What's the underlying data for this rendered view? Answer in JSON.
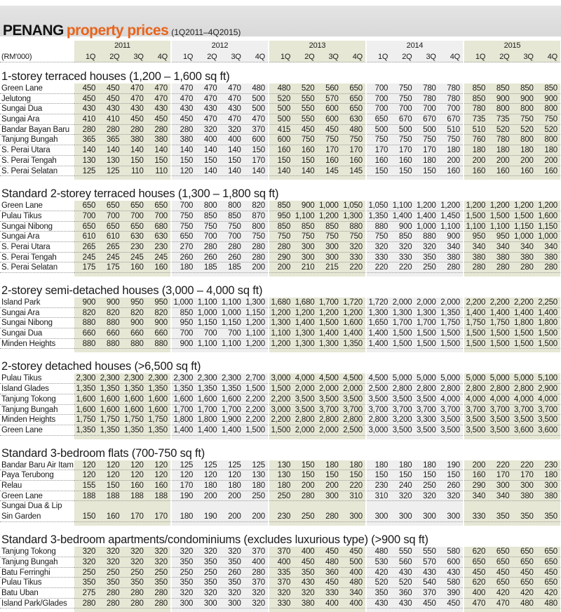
{
  "title": {
    "main": "PENANG",
    "accent": "property prices",
    "period": "(1Q2011–4Q2015)"
  },
  "header": {
    "unit": "(RM'000)",
    "years": [
      "2011",
      "2012",
      "2013",
      "2014",
      "2015"
    ],
    "quarters": [
      "1Q",
      "2Q",
      "3Q",
      "4Q"
    ]
  },
  "colors": {
    "accent": "#e8641c",
    "band_green": "#e6e7d4",
    "band_gray": "#efefef",
    "titlebar": "#dcdcdc"
  },
  "sections": [
    {
      "title": "1-storey terraced houses (1,200 – 1,600  sq ft)",
      "rows": [
        {
          "name": "Green Lane",
          "values": [
            "450",
            "450",
            "470",
            "470",
            "470",
            "470",
            "470",
            "480",
            "480",
            "520",
            "560",
            "650",
            "700",
            "750",
            "780",
            "780",
            "850",
            "850",
            "850",
            "850"
          ]
        },
        {
          "name": "Jelutong",
          "values": [
            "450",
            "450",
            "470",
            "470",
            "470",
            "470",
            "470",
            "500",
            "520",
            "550",
            "570",
            "650",
            "700",
            "750",
            "780",
            "780",
            "850",
            "900",
            "900",
            "900"
          ]
        },
        {
          "name": "Sungai Dua",
          "values": [
            "430",
            "430",
            "430",
            "430",
            "430",
            "430",
            "430",
            "500",
            "500",
            "550",
            "600",
            "650",
            "700",
            "700",
            "700",
            "700",
            "780",
            "800",
            "800",
            "800"
          ]
        },
        {
          "name": "Sungai Ara",
          "values": [
            "410",
            "410",
            "450",
            "450",
            "450",
            "470",
            "470",
            "470",
            "500",
            "550",
            "600",
            "630",
            "650",
            "670",
            "670",
            "670",
            "735",
            "735",
            "750",
            "750"
          ]
        },
        {
          "name": "Bandar Bayan Baru",
          "values": [
            "280",
            "280",
            "280",
            "280",
            "280",
            "320",
            "320",
            "370",
            "415",
            "450",
            "450",
            "480",
            "500",
            "500",
            "500",
            "510",
            "510",
            "520",
            "520",
            "520"
          ]
        },
        {
          "name": "Tanjung Bungah",
          "values": [
            "365",
            "365",
            "380",
            "380",
            "380",
            "400",
            "400",
            "600",
            "600",
            "750",
            "750",
            "750",
            "750",
            "750",
            "750",
            "750",
            "760",
            "780",
            "800",
            "800"
          ]
        },
        {
          "name": "S. Perai Utara",
          "values": [
            "140",
            "140",
            "140",
            "140",
            "140",
            "140",
            "140",
            "150",
            "160",
            "160",
            "170",
            "170",
            "170",
            "170",
            "170",
            "180",
            "180",
            "180",
            "180",
            "180"
          ]
        },
        {
          "name": "S. Perai Tengah",
          "values": [
            "130",
            "130",
            "150",
            "150",
            "150",
            "150",
            "150",
            "170",
            "150",
            "150",
            "160",
            "160",
            "160",
            "160",
            "180",
            "200",
            "200",
            "200",
            "200",
            "200"
          ]
        },
        {
          "name": "S. Perai Selatan",
          "values": [
            "125",
            "125",
            "110",
            "110",
            "120",
            "140",
            "140",
            "140",
            "140",
            "140",
            "145",
            "145",
            "150",
            "150",
            "150",
            "160",
            "160",
            "160",
            "160",
            "160"
          ]
        }
      ]
    },
    {
      "title": "Standard 2-storey terraced houses (1,300 – 1,800  sq ft)",
      "rows": [
        {
          "name": "Green Lane",
          "values": [
            "650",
            "650",
            "650",
            "650",
            "700",
            "800",
            "800",
            "820",
            "850",
            "900",
            "1,000",
            "1,050",
            "1,050",
            "1,100",
            "1,200",
            "1,200",
            "1,200",
            "1,200",
            "1,200",
            "1,200"
          ]
        },
        {
          "name": "Pulau Tikus",
          "values": [
            "700",
            "700",
            "700",
            "700",
            "750",
            "850",
            "850",
            "870",
            "950",
            "1,100",
            "1,200",
            "1,300",
            "1,350",
            "1,400",
            "1,400",
            "1,450",
            "1,500",
            "1,500",
            "1,500",
            "1,600"
          ]
        },
        {
          "name": "Sungai Nibong",
          "values": [
            "650",
            "650",
            "650",
            "680",
            "750",
            "750",
            "750",
            "800",
            "850",
            "850",
            "850",
            "880",
            "880",
            "900",
            "1,000",
            "1,100",
            "1,100",
            "1,100",
            "1,150",
            "1,150"
          ]
        },
        {
          "name": "Sungai Ara",
          "values": [
            "610",
            "610",
            "630",
            "630",
            "650",
            "700",
            "700",
            "750",
            "750",
            "750",
            "750",
            "750",
            "750",
            "850",
            "880",
            "900",
            "950",
            "950",
            "1,000",
            "1,000"
          ]
        },
        {
          "name": "S. Perai Utara",
          "values": [
            "265",
            "265",
            "230",
            "230",
            "270",
            "280",
            "280",
            "280",
            "280",
            "300",
            "300",
            "320",
            "320",
            "320",
            "320",
            "340",
            "340",
            "340",
            "340",
            "340"
          ]
        },
        {
          "name": "S. Perai Tengah",
          "values": [
            "245",
            "245",
            "245",
            "245",
            "260",
            "260",
            "260",
            "280",
            "290",
            "300",
            "300",
            "330",
            "330",
            "330",
            "350",
            "380",
            "380",
            "380",
            "380",
            "380"
          ]
        },
        {
          "name": "S. Perai Selatan",
          "values": [
            "175",
            "175",
            "160",
            "160",
            "180",
            "185",
            "185",
            "200",
            "200",
            "210",
            "215",
            "220",
            "220",
            "220",
            "250",
            "280",
            "280",
            "280",
            "280",
            "280"
          ]
        }
      ]
    },
    {
      "title": "2-storey semi-detached houses (3,000 – 4,000  sq ft)",
      "rows": [
        {
          "name": "Island Park",
          "values": [
            "900",
            "900",
            "950",
            "950",
            "1,000",
            "1,100",
            "1,100",
            "1,300",
            "1,680",
            "1,680",
            "1,700",
            "1,720",
            "1,720",
            "2,000",
            "2,000",
            "2,000",
            "2,200",
            "2,200",
            "2,200",
            "2,250"
          ]
        },
        {
          "name": "Sungai Ara",
          "values": [
            "820",
            "820",
            "820",
            "820",
            "850",
            "1,000",
            "1,000",
            "1,150",
            "1,200",
            "1,200",
            "1,200",
            "1,200",
            "1,300",
            "1,300",
            "1,300",
            "1,350",
            "1,400",
            "1,400",
            "1,400",
            "1,400"
          ]
        },
        {
          "name": "Sungai Nibong",
          "values": [
            "880",
            "880",
            "900",
            "900",
            "950",
            "1,150",
            "1,150",
            "1,200",
            "1,300",
            "1,400",
            "1,500",
            "1,600",
            "1,650",
            "1,700",
            "1,700",
            "1,750",
            "1,750",
            "1,750",
            "1,800",
            "1,800"
          ]
        },
        {
          "name": "Sungai Dua",
          "values": [
            "660",
            "660",
            "660",
            "660",
            "700",
            "700",
            "700",
            "1,100",
            "1,100",
            "1,300",
            "1,400",
            "1,400",
            "1,400",
            "1,500",
            "1,500",
            "1,500",
            "1,500",
            "1,500",
            "1,500",
            "1,500"
          ]
        },
        {
          "name": "Minden Heights",
          "values": [
            "880",
            "880",
            "880",
            "880",
            "900",
            "1,100",
            "1,100",
            "1,200",
            "1,200",
            "1,300",
            "1,300",
            "1,350",
            "1,400",
            "1,500",
            "1,500",
            "1,500",
            "1,500",
            "1,500",
            "1,500",
            "1,500"
          ]
        }
      ]
    },
    {
      "title": "2-storey detached houses (>6,500 sq ft)",
      "rows": [
        {
          "name": "Pulau Tikus",
          "values": [
            "2,300",
            "2,300",
            "2,300",
            "2,300",
            "2,300",
            "2,300",
            "2,300",
            "2,700",
            "3,000",
            "4,000",
            "4,500",
            "4,500",
            "4,500",
            "5,000",
            "5,000",
            "5,000",
            "5,000",
            "5,000",
            "5,000",
            "5,100"
          ]
        },
        {
          "name": "Island Glades",
          "values": [
            "1,350",
            "1,350",
            "1,350",
            "1,350",
            "1,350",
            "1,350",
            "1,350",
            "1,500",
            "1,500",
            "2,000",
            "2,000",
            "2,000",
            "2,500",
            "2,800",
            "2,800",
            "2,800",
            "2,800",
            "2,800",
            "2,800",
            "2,900"
          ]
        },
        {
          "name": "Tanjung Tokong",
          "values": [
            "1,600",
            "1,600",
            "1,600",
            "1,600",
            "1,600",
            "1,600",
            "1,600",
            "2,200",
            "2,200",
            "3,500",
            "3,500",
            "3,500",
            "3,500",
            "3,500",
            "3,500",
            "4,000",
            "4,000",
            "4,000",
            "4,000",
            "4,000"
          ]
        },
        {
          "name": "Tanjung Bungah",
          "values": [
            "1,600",
            "1,600",
            "1,600",
            "1,600",
            "1,700",
            "1,700",
            "1,700",
            "2,200",
            "3,000",
            "3,500",
            "3,700",
            "3,700",
            "3,700",
            "3,700",
            "3,700",
            "3,700",
            "3,700",
            "3,700",
            "3,700",
            "3,700"
          ]
        },
        {
          "name": "Minden Heights",
          "values": [
            "1,750",
            "1,750",
            "1,750",
            "1,750",
            "1,800",
            "1,800",
            "1,900",
            "2,200",
            "2,200",
            "2,800",
            "2,800",
            "2,800",
            "2,800",
            "3,200",
            "3,300",
            "3,500",
            "3,500",
            "3,500",
            "3,500",
            "3,500"
          ]
        },
        {
          "name": "Green Lane",
          "values": [
            "1,350",
            "1,350",
            "1,350",
            "1,350",
            "1,400",
            "1,400",
            "1,400",
            "1,500",
            "1,500",
            "2,000",
            "2,000",
            "2,500",
            "3,000",
            "3,500",
            "3,500",
            "3,500",
            "3,500",
            "3,500",
            "3,600",
            "3,600"
          ]
        }
      ]
    },
    {
      "title": "Standard 3-bedroom flats (700-750  sq ft)",
      "rows": [
        {
          "name": "Bandar Baru Air Itam",
          "values": [
            "120",
            "120",
            "120",
            "120",
            "125",
            "125",
            "125",
            "125",
            "130",
            "150",
            "180",
            "180",
            "180",
            "180",
            "180",
            "190",
            "200",
            "220",
            "220",
            "230"
          ]
        },
        {
          "name": "Paya Terubong",
          "values": [
            "120",
            "120",
            "120",
            "120",
            "120",
            "120",
            "120",
            "130",
            "130",
            "150",
            "150",
            "150",
            "150",
            "150",
            "150",
            "150",
            "160",
            "170",
            "170",
            "180"
          ]
        },
        {
          "name": "Relau",
          "values": [
            "155",
            "150",
            "160",
            "160",
            "170",
            "180",
            "180",
            "180",
            "180",
            "200",
            "200",
            "220",
            "230",
            "240",
            "250",
            "260",
            "290",
            "300",
            "300",
            "300"
          ]
        },
        {
          "name": "Green Lane",
          "values": [
            "188",
            "188",
            "188",
            "188",
            "190",
            "200",
            "200",
            "250",
            "250",
            "280",
            "300",
            "310",
            "310",
            "320",
            "320",
            "320",
            "340",
            "340",
            "380",
            "380"
          ]
        },
        {
          "name": "Sungai Dua & Lip Sin Garden",
          "values": [
            "150",
            "160",
            "170",
            "170",
            "180",
            "190",
            "200",
            "200",
            "230",
            "250",
            "280",
            "300",
            "300",
            "300",
            "300",
            "300",
            "330",
            "350",
            "350",
            "350"
          ]
        }
      ]
    },
    {
      "title": "Standard 3-bedroom apartments/condominiums (excludes luxurious type) (>900  sq ft)",
      "rows": [
        {
          "name": "Tanjung Tokong",
          "values": [
            "320",
            "320",
            "320",
            "320",
            "320",
            "320",
            "320",
            "370",
            "370",
            "400",
            "450",
            "450",
            "480",
            "550",
            "550",
            "580",
            "620",
            "650",
            "650",
            "650"
          ]
        },
        {
          "name": "Tanjung Bungah",
          "values": [
            "320",
            "320",
            "320",
            "320",
            "350",
            "350",
            "350",
            "400",
            "400",
            "450",
            "480",
            "500",
            "530",
            "560",
            "570",
            "600",
            "650",
            "650",
            "650",
            "650"
          ]
        },
        {
          "name": "Batu Ferringhi",
          "values": [
            "250",
            "250",
            "250",
            "250",
            "250",
            "250",
            "260",
            "280",
            "335",
            "350",
            "360",
            "400",
            "420",
            "430",
            "430",
            "430",
            "450",
            "450",
            "450",
            "450"
          ]
        },
        {
          "name": "Pulau Tikus",
          "values": [
            "350",
            "350",
            "350",
            "350",
            "350",
            "350",
            "350",
            "370",
            "370",
            "430",
            "450",
            "480",
            "520",
            "520",
            "540",
            "580",
            "620",
            "650",
            "650",
            "650"
          ]
        },
        {
          "name": "Batu Uban",
          "values": [
            "275",
            "280",
            "280",
            "280",
            "320",
            "320",
            "320",
            "320",
            "320",
            "320",
            "330",
            "340",
            "350",
            "360",
            "370",
            "390",
            "400",
            "420",
            "420",
            "420"
          ]
        },
        {
          "name": "Island Park/Glades",
          "values": [
            "280",
            "280",
            "280",
            "280",
            "300",
            "300",
            "300",
            "320",
            "330",
            "380",
            "400",
            "400",
            "430",
            "430",
            "450",
            "450",
            "470",
            "470",
            "480",
            "480"
          ]
        }
      ]
    }
  ]
}
